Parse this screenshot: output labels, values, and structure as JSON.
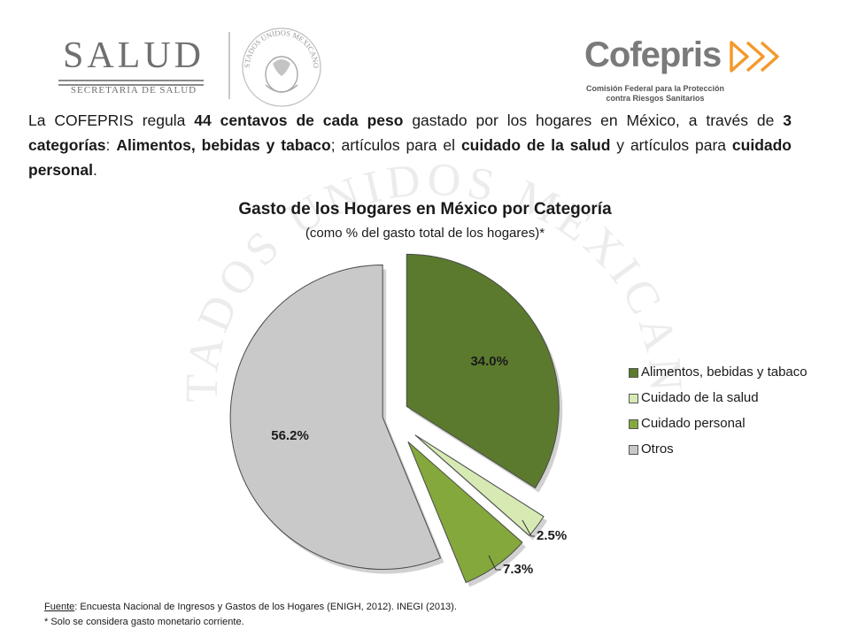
{
  "header": {
    "salud_word": "SALUD",
    "salud_sub": "SECRETARÍA DE SALUD",
    "seal_text": "ESTADOS UNIDOS MEXICANOS",
    "cofepris_word": "Cofepris",
    "cofepris_sub_1": "Comisión Federal para la Protección",
    "cofepris_sub_2": "contra Riesgos Sanitarios"
  },
  "intro": {
    "t1": "La COFEPRIS regula ",
    "b1": "44 centavos de cada peso",
    "t2": " gastado por los hogares en México, a través de ",
    "b2": "3 categorías",
    "t3": ": ",
    "b3": "Alimentos, bebidas y tabaco",
    "t4": "; artículos para el ",
    "b4": "cuidado de la salud",
    "t5": " y artículos para ",
    "b5": "cuidado personal",
    "t6": "."
  },
  "watermark_text": "ESTADOS UNIDOS MEXICANOS",
  "chart_data": {
    "type": "pie",
    "title": "Gasto de los Hogares en México por Categoría",
    "subtitle": "(como % del gasto total de los hogares)*",
    "categories": [
      "Alimentos, bebidas y tabaco",
      "Cuidado de la salud",
      "Cuidado personal",
      "Otros"
    ],
    "values": [
      34.0,
      2.5,
      7.3,
      56.2
    ],
    "labels": [
      "34.0%",
      "2.5%",
      "7.3%",
      "56.2%"
    ],
    "colors": [
      "#5b7a2e",
      "#d7eab4",
      "#84a83c",
      "#c9c9c9"
    ],
    "exploded": true,
    "legend_position": "right"
  },
  "footer": {
    "source_label": "Fuente",
    "source_text": ": Encuesta Nacional de Ingresos y Gastos de los Hogares (ENIGH, 2012). INEGI (2013).",
    "note": "* Solo se considera gasto monetario corriente."
  }
}
